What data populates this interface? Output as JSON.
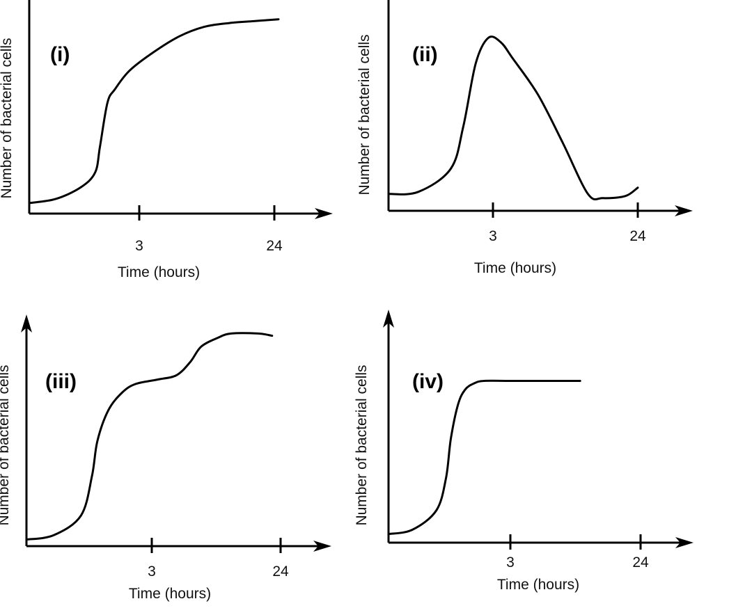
{
  "chart_data": [
    {
      "type": "line",
      "panel": "(i)",
      "xlabel": "Time (hours)",
      "ylabel": "Number of bacterial cells",
      "x_ticks": [
        "3",
        "24"
      ],
      "series": [
        {
          "x": [
            0,
            0.1,
            0.2,
            0.26,
            0.28,
            0.31,
            0.34,
            0.4,
            0.5,
            0.6,
            0.7,
            0.8,
            0.9,
            1.0
          ],
          "y": [
            0.02,
            0.04,
            0.1,
            0.18,
            0.32,
            0.55,
            0.62,
            0.72,
            0.82,
            0.9,
            0.95,
            0.97,
            0.98,
            0.99
          ]
        }
      ]
    },
    {
      "type": "line",
      "panel": "(ii)",
      "xlabel": "Time (hours)",
      "ylabel": "Number of bacterial cells",
      "x_ticks": [
        "3",
        "24"
      ],
      "series": [
        {
          "x": [
            0,
            0.12,
            0.25,
            0.3,
            0.35,
            0.4,
            0.45,
            0.5,
            0.6,
            0.7,
            0.8,
            0.86,
            0.95,
            1.0
          ],
          "y": [
            0.08,
            0.09,
            0.2,
            0.4,
            0.7,
            0.82,
            0.8,
            0.72,
            0.55,
            0.32,
            0.08,
            0.06,
            0.07,
            0.11
          ]
        }
      ]
    },
    {
      "type": "line",
      "panel": "(iii)",
      "xlabel": "Time (hours)",
      "ylabel": "Number of bacterial cells",
      "x_ticks": [
        "3",
        "24"
      ],
      "series": [
        {
          "x": [
            0,
            0.1,
            0.2,
            0.24,
            0.26,
            0.3,
            0.35,
            0.4,
            0.48,
            0.55,
            0.6,
            0.64,
            0.7,
            0.75,
            0.85,
            0.9
          ],
          "y": [
            0.03,
            0.05,
            0.14,
            0.32,
            0.48,
            0.62,
            0.7,
            0.74,
            0.76,
            0.78,
            0.84,
            0.91,
            0.95,
            0.97,
            0.97,
            0.96
          ]
        }
      ]
    },
    {
      "type": "line",
      "panel": "(iv)",
      "xlabel": "Time (hours)",
      "ylabel": "Number of bacterial cells",
      "x_ticks": [
        "3",
        "24"
      ],
      "series": [
        {
          "x": [
            0,
            0.1,
            0.2,
            0.24,
            0.26,
            0.29,
            0.32,
            0.36,
            0.4,
            0.5,
            0.6,
            0.8
          ],
          "y": [
            0.04,
            0.06,
            0.15,
            0.3,
            0.48,
            0.64,
            0.71,
            0.74,
            0.75,
            0.75,
            0.75,
            0.75
          ]
        }
      ]
    }
  ]
}
